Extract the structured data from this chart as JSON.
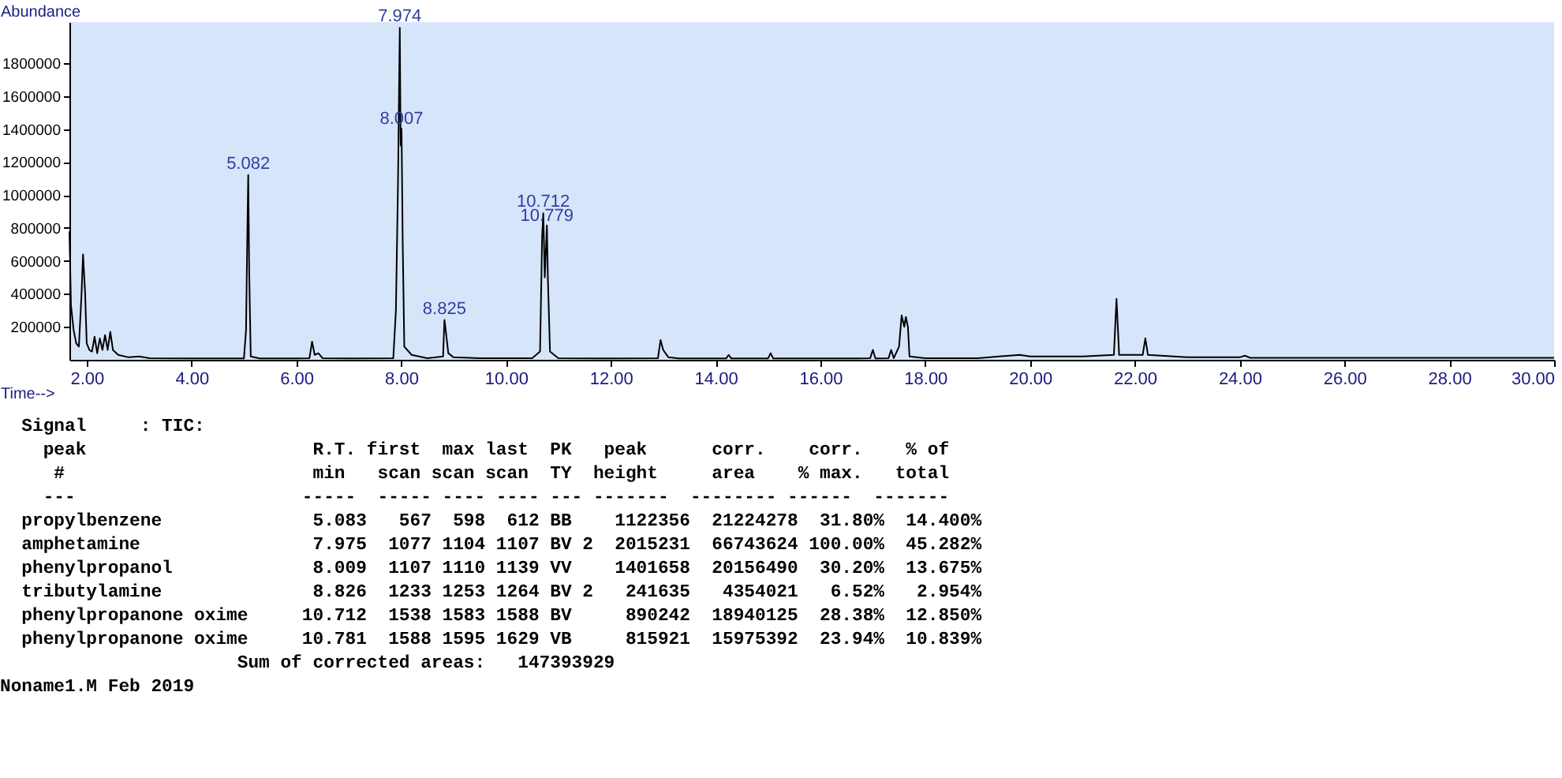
{
  "chart_data": {
    "type": "line",
    "xlabel": "Time-->",
    "ylabel": "Abundance",
    "xlim": [
      1.67,
      30
    ],
    "ylim": [
      0,
      2050000
    ],
    "xticks": [
      {
        "value": 2,
        "label": "2.00"
      },
      {
        "value": 4,
        "label": "4.00"
      },
      {
        "value": 6,
        "label": "6.00"
      },
      {
        "value": 8,
        "label": "8.00"
      },
      {
        "value": 10,
        "label": "10.00"
      },
      {
        "value": 12,
        "label": "12.00"
      },
      {
        "value": 14,
        "label": "14.00"
      },
      {
        "value": 16,
        "label": "16.00"
      },
      {
        "value": 18,
        "label": "18.00"
      },
      {
        "value": 20,
        "label": "20.00"
      },
      {
        "value": 22,
        "label": "22.00"
      },
      {
        "value": 24,
        "label": "24.00"
      },
      {
        "value": 26,
        "label": "26.00"
      },
      {
        "value": 28,
        "label": "28.00"
      },
      {
        "value": 30,
        "label": "30.00"
      }
    ],
    "yticks": [
      200000,
      400000,
      600000,
      800000,
      1000000,
      1200000,
      1400000,
      1600000,
      1800000
    ],
    "grid": false,
    "series": [
      {
        "color": "#000000",
        "x": [
          1.67,
          1.7,
          1.75,
          1.8,
          1.85,
          1.9,
          1.93,
          1.97,
          2.0,
          2.05,
          2.1,
          2.15,
          2.2,
          2.25,
          2.3,
          2.35,
          2.4,
          2.45,
          2.5,
          2.6,
          2.8,
          3.0,
          3.2,
          4.0,
          5.0,
          5.04,
          5.07,
          5.082,
          5.1,
          5.13,
          5.3,
          6.0,
          6.25,
          6.3,
          6.35,
          6.42,
          6.5,
          7.0,
          7.85,
          7.9,
          7.94,
          7.96,
          7.974,
          7.99,
          8.007,
          8.03,
          8.06,
          8.2,
          8.5,
          8.8,
          8.826,
          8.85,
          8.9,
          9.0,
          9.5,
          10.5,
          10.65,
          10.69,
          10.712,
          10.74,
          10.781,
          10.8,
          10.84,
          11.0,
          12.0,
          12.9,
          12.95,
          13.0,
          13.1,
          13.3,
          14.2,
          14.25,
          14.3,
          15.0,
          15.05,
          15.1,
          16.7,
          16.95,
          17.0,
          17.05,
          17.3,
          17.35,
          17.4,
          17.5,
          17.55,
          17.6,
          17.63,
          17.67,
          17.7,
          18.0,
          19.0,
          19.8,
          20.0,
          21.0,
          21.6,
          21.65,
          21.7,
          22.15,
          22.2,
          22.25,
          23.0,
          24.0,
          24.1,
          24.2,
          26.0,
          30.0
        ],
        "values": [
          780000,
          330000,
          180000,
          100000,
          80000,
          390000,
          640000,
          400000,
          100000,
          60000,
          50000,
          140000,
          40000,
          130000,
          60000,
          150000,
          60000,
          170000,
          60000,
          30000,
          15000,
          20000,
          10000,
          8000,
          8000,
          180000,
          880000,
          1122356,
          540000,
          20000,
          8000,
          8000,
          10000,
          110000,
          30000,
          40000,
          10000,
          8000,
          10000,
          300000,
          1080000,
          1650000,
          2015231,
          1300000,
          1401658,
          700000,
          80000,
          30000,
          10000,
          20000,
          241635,
          180000,
          40000,
          15000,
          10000,
          10000,
          50000,
          750000,
          890242,
          500000,
          815921,
          490000,
          50000,
          10000,
          8000,
          10000,
          120000,
          60000,
          15000,
          8000,
          8000,
          30000,
          8000,
          8000,
          40000,
          8000,
          8000,
          10000,
          60000,
          8000,
          10000,
          60000,
          10000,
          80000,
          270000,
          200000,
          260000,
          200000,
          20000,
          10000,
          10000,
          30000,
          20000,
          20000,
          30000,
          370000,
          30000,
          30000,
          130000,
          30000,
          15000,
          15000,
          25000,
          12000,
          12000,
          12000
        ]
      }
    ],
    "annotations": [
      {
        "text": "5.082",
        "x": 5.082,
        "y": 1122356
      },
      {
        "text": "7.974",
        "x": 7.974,
        "y": 2015231
      },
      {
        "text": "8.007",
        "x": 8.007,
        "y": 1401658
      },
      {
        "text": "8.825",
        "x": 8.826,
        "y": 241635
      },
      {
        "text": "10.712",
        "x": 10.712,
        "y": 890242
      },
      {
        "text": "10.779",
        "x": 10.781,
        "y": 815921
      },
      "  Signal     : TIC:",
      "    peak                     R.T. first  max last  PK   peak      corr.    corr.    % of",
      "     #                       min   scan scan scan  TY  height     area    % max.   total",
      "    ---                     -----  ----- ---- ---- --- -------  -------- ------  -------",
      "  propylbenzene              5.083   567  598  612 BB    1122356  21224278  31.80%  14.400%",
      "  amphetamine                7.975  1077 1104 1107 BV 2  2015231  66743624 100.00%  45.282%",
      "  phenylpropanol             8.009  1107 1110 1139 VV    1401658  20156490  30.20%  13.675%",
      "  tributylamine              8.826  1233 1253 1264 BV 2   241635   4354021   6.52%   2.954%",
      "  phenylpropanone oxime     10.712  1538 1583 1588 BV     890242  18940125  28.38%  12.850%",
      "  phenylpropanone oxime     10.781  1588 1595 1629 VB     815921  15975392  23.94%  10.839%",
      "                      Sum of corrected areas:   147393929",
      "Noname1.M Feb 2019"
    ]
  }
}
